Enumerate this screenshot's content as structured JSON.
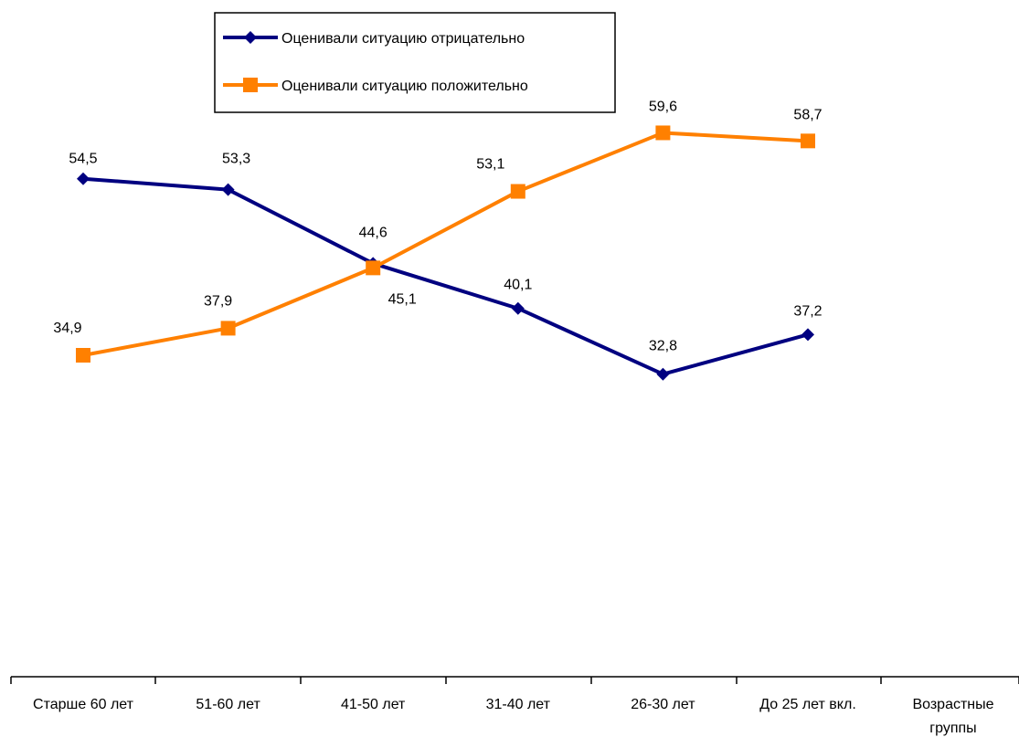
{
  "chart_data": {
    "type": "line",
    "categories": [
      "Старше 60 лет",
      "51-60 лет",
      "41-50 лет",
      "31-40 лет",
      "26-30 лет",
      "До 25 лет вкл."
    ],
    "axis_title_line1": "Возрастные",
    "axis_title_line2": "группы",
    "series": [
      {
        "name": "Оценивали ситуацию отрицательно",
        "color": "#000080",
        "marker": "diamond",
        "values": [
          54.5,
          53.3,
          45.1,
          40.1,
          32.8,
          37.2
        ],
        "labels": [
          "54,5",
          "53,3",
          "45,1",
          "40,1",
          "32,8",
          "37,2"
        ]
      },
      {
        "name": "Оценивали ситуацию положительно",
        "color": "#FF8000",
        "marker": "square",
        "values": [
          34.9,
          37.9,
          44.6,
          53.1,
          59.6,
          58.7
        ],
        "labels": [
          "34,9",
          "37,9",
          "44,6",
          "53,1",
          "59,6",
          "58,7"
        ]
      }
    ],
    "legend_position": "top",
    "grid": false,
    "y_axis_visible": false
  }
}
